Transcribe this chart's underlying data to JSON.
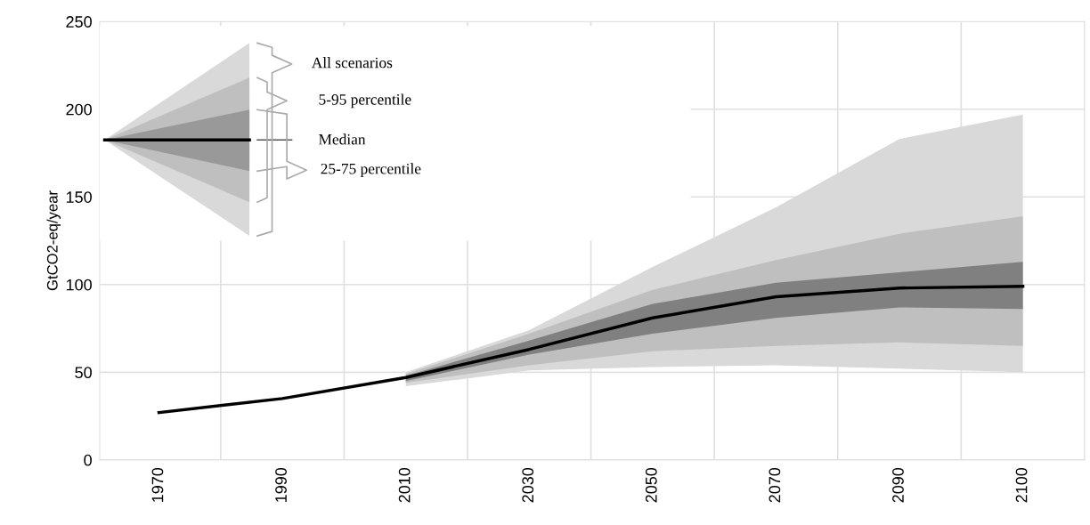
{
  "chart_data": {
    "type": "line",
    "ylabel": "GtCO2-eq/year",
    "categories": [
      "1970",
      "1990",
      "2010",
      "2030",
      "2050",
      "2070",
      "2090",
      "2100"
    ],
    "ylim": [
      0,
      250
    ],
    "yticks": [
      0,
      50,
      100,
      150,
      200,
      250
    ],
    "grid": true,
    "marker": "none",
    "line_style": "solid",
    "annotations": [
      "All scenarios",
      "5-95 percentile",
      "Median",
      "25-75 percentile"
    ],
    "series": [
      {
        "color": "#d9d9d9",
        "values": [
          null,
          null,
          null,
          null,
          null,
          null,
          null,
          null
        ],
        "lower": [
          null,
          null,
          42,
          51,
          53,
          54,
          52,
          50
        ],
        "upper": [
          null,
          null,
          50,
          74,
          110,
          144,
          183,
          197
        ]
      },
      {
        "color": "#bfbfbf",
        "values": [
          null,
          null,
          null,
          null,
          null,
          null,
          null,
          null
        ],
        "lower": [
          null,
          null,
          44,
          54,
          62,
          65,
          67,
          65
        ],
        "upper": [
          null,
          null,
          49,
          72,
          97,
          114,
          129,
          139
        ]
      },
      {
        "color": "#808080",
        "values": [
          null,
          null,
          null,
          null,
          null,
          null,
          null,
          null
        ],
        "lower": [
          null,
          null,
          45,
          60,
          72,
          81,
          87,
          86
        ],
        "upper": [
          null,
          null,
          48,
          68,
          89,
          101,
          107,
          113
        ]
      },
      {
        "color": "#000000",
        "values": [
          27,
          35,
          47,
          63,
          81,
          93,
          98,
          99
        ]
      }
    ]
  }
}
